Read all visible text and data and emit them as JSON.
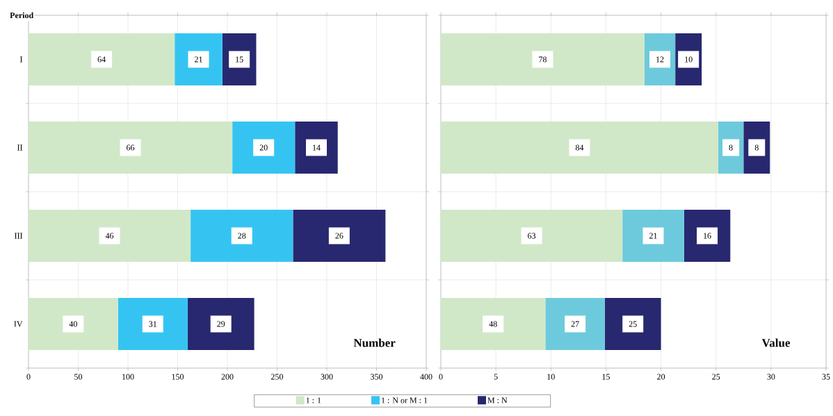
{
  "chart_data": [
    {
      "type": "bar",
      "orientation": "horizontal",
      "stacked": true,
      "title": "Number",
      "ylabel": "Period",
      "categories": [
        "I",
        "II",
        "III",
        "IV"
      ],
      "series": [
        {
          "name": "1 : 1",
          "color": "#d0e8c8",
          "values": [
            147,
            205,
            163,
            90
          ]
        },
        {
          "name": "1 : N or M : 1",
          "color": "#35c4f2",
          "values": [
            48,
            63,
            103,
            70
          ]
        },
        {
          "name": "M : N",
          "color": "#282870",
          "values": [
            34,
            43,
            93,
            67
          ]
        }
      ],
      "annotations": [
        {
          "text": "64",
          "x": 73.5,
          "y": "I"
        },
        {
          "text": "21",
          "x": 171,
          "y": "I"
        },
        {
          "text": "15",
          "x": 212,
          "y": "I"
        },
        {
          "text": "66",
          "x": 102.5,
          "y": "II"
        },
        {
          "text": "20",
          "x": 236.5,
          "y": "II"
        },
        {
          "text": "14",
          "x": 289.5,
          "y": "II"
        },
        {
          "text": "46",
          "x": 81.5,
          "y": "III"
        },
        {
          "text": "28",
          "x": 214.5,
          "y": "III"
        },
        {
          "text": "26",
          "x": 312.5,
          "y": "III"
        },
        {
          "text": "40",
          "x": 45,
          "y": "IV"
        },
        {
          "text": "31",
          "x": 125,
          "y": "IV"
        },
        {
          "text": "29",
          "x": 193.5,
          "y": "IV"
        }
      ],
      "xlim": [
        0,
        400
      ],
      "xticks": [
        0,
        50,
        100,
        150,
        200,
        250,
        300,
        350,
        400
      ],
      "grid": true,
      "legend": "bottom"
    },
    {
      "type": "bar",
      "orientation": "horizontal",
      "stacked": true,
      "title": "Value",
      "categories": [
        "I",
        "II",
        "III",
        "IV"
      ],
      "series": [
        {
          "color": "#d0e8c8",
          "values": [
            18.5,
            25.2,
            16.5,
            9.5
          ]
        },
        {
          "color": "#6dcadc",
          "values": [
            2.8,
            2.3,
            5.6,
            5.4
          ]
        },
        {
          "color": "#282870",
          "values": [
            2.4,
            2.4,
            4.2,
            5.1
          ]
        }
      ],
      "annotations": [
        {
          "text": "78",
          "x": 9.25,
          "y": "I"
        },
        {
          "text": "12",
          "x": 19.9,
          "y": "I"
        },
        {
          "text": "10",
          "x": 22.5,
          "y": "I"
        },
        {
          "text": "84",
          "x": 12.6,
          "y": "II"
        },
        {
          "text": "8",
          "x": 26.35,
          "y": "II"
        },
        {
          "text": "8",
          "x": 28.7,
          "y": "II"
        },
        {
          "text": "63",
          "x": 8.25,
          "y": "III"
        },
        {
          "text": "21",
          "x": 19.3,
          "y": "III"
        },
        {
          "text": "16",
          "x": 24.2,
          "y": "III"
        },
        {
          "text": "48",
          "x": 4.75,
          "y": "IV"
        },
        {
          "text": "27",
          "x": 12.2,
          "y": "IV"
        },
        {
          "text": "25",
          "x": 17.45,
          "y": "IV"
        }
      ],
      "xlim": [
        0,
        35
      ],
      "xticks": [
        0,
        5,
        10,
        15,
        20,
        25,
        30,
        35
      ],
      "grid": true,
      "tick_labels": "x"
    }
  ]
}
